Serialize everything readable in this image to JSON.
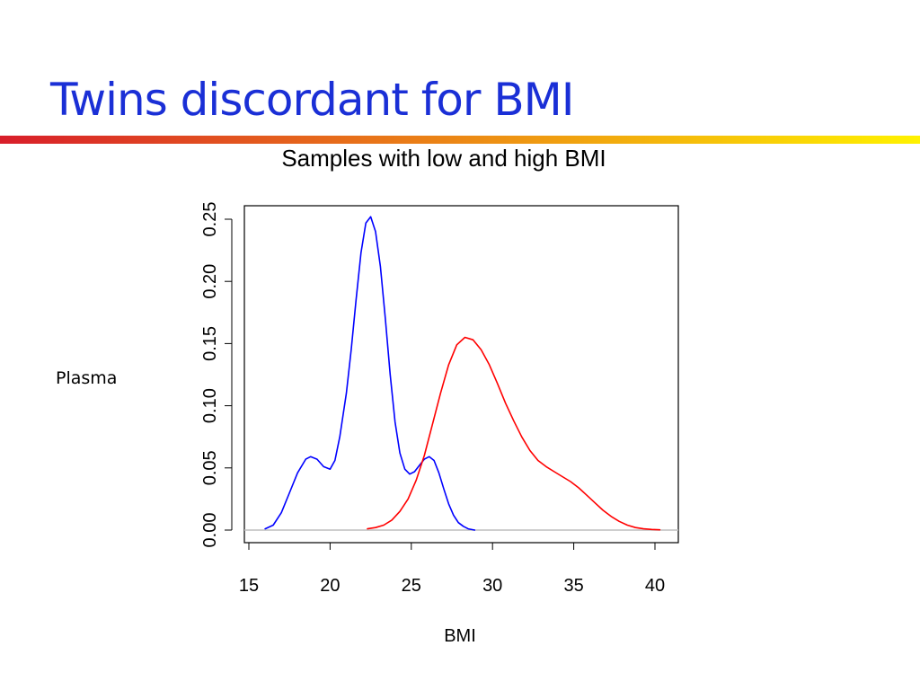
{
  "slide": {
    "title": "Twins discordant for BMI",
    "side_label": "Plasma"
  },
  "colors": {
    "title": "#1a2fd6",
    "rule_start": "#d81e2a",
    "rule_end": "#fff200",
    "low_series": "#0000ff",
    "high_series": "#ff0000",
    "baseline": "#bebebe",
    "axis": "#000000"
  },
  "chart_data": {
    "type": "line",
    "title": "Samples with low and high BMI",
    "xlabel": "BMI",
    "ylabel": "",
    "xlim": [
      15,
      41
    ],
    "ylim": [
      0,
      0.26
    ],
    "x_ticks": [
      15,
      20,
      25,
      30,
      35,
      40
    ],
    "x_tick_labels": [
      "15",
      "20",
      "25",
      "30",
      "35",
      "40"
    ],
    "y_ticks": [
      0,
      0.05,
      0.1,
      0.15,
      0.2,
      0.25
    ],
    "y_tick_labels": [
      "0.00",
      "0.05",
      "0.10",
      "0.15",
      "0.20",
      "0.25"
    ],
    "grid": false,
    "legend": "none",
    "baseline_y": 0,
    "series": [
      {
        "color": "#0000ff",
        "x": [
          16,
          16.5,
          17,
          17.5,
          18,
          18.5,
          18.8,
          19.2,
          19.6,
          20,
          20.3,
          20.6,
          21,
          21.3,
          21.6,
          21.9,
          22.2,
          22.5,
          22.8,
          23.1,
          23.4,
          23.7,
          24,
          24.3,
          24.6,
          24.9,
          25.2,
          25.5,
          25.8,
          26.1,
          26.4,
          26.7,
          27,
          27.3,
          27.6,
          27.9,
          28.2,
          28.5,
          28.9
        ],
        "y": [
          0.001,
          0.004,
          0.014,
          0.03,
          0.046,
          0.057,
          0.059,
          0.057,
          0.051,
          0.049,
          0.056,
          0.075,
          0.11,
          0.145,
          0.185,
          0.223,
          0.247,
          0.252,
          0.24,
          0.212,
          0.17,
          0.125,
          0.087,
          0.062,
          0.049,
          0.045,
          0.047,
          0.052,
          0.057,
          0.059,
          0.056,
          0.046,
          0.033,
          0.021,
          0.012,
          0.006,
          0.003,
          0.001,
          0
        ]
      },
      {
        "color": "#ff0000",
        "x": [
          22.3,
          22.8,
          23.3,
          23.8,
          24.3,
          24.8,
          25.3,
          25.8,
          26.3,
          26.8,
          27.3,
          27.8,
          28.3,
          28.8,
          29.3,
          29.8,
          30.3,
          30.8,
          31.3,
          31.8,
          32.3,
          32.8,
          33.3,
          33.8,
          34.3,
          34.8,
          35.3,
          35.8,
          36.3,
          36.8,
          37.3,
          37.8,
          38.3,
          38.8,
          39.3,
          39.8,
          40.3
        ],
        "y": [
          0.001,
          0.002,
          0.004,
          0.008,
          0.015,
          0.025,
          0.04,
          0.06,
          0.085,
          0.11,
          0.133,
          0.149,
          0.155,
          0.153,
          0.145,
          0.133,
          0.118,
          0.102,
          0.088,
          0.075,
          0.064,
          0.056,
          0.051,
          0.047,
          0.043,
          0.039,
          0.034,
          0.028,
          0.022,
          0.016,
          0.011,
          0.007,
          0.004,
          0.002,
          0.001,
          0.0005,
          0.0002
        ]
      }
    ]
  }
}
